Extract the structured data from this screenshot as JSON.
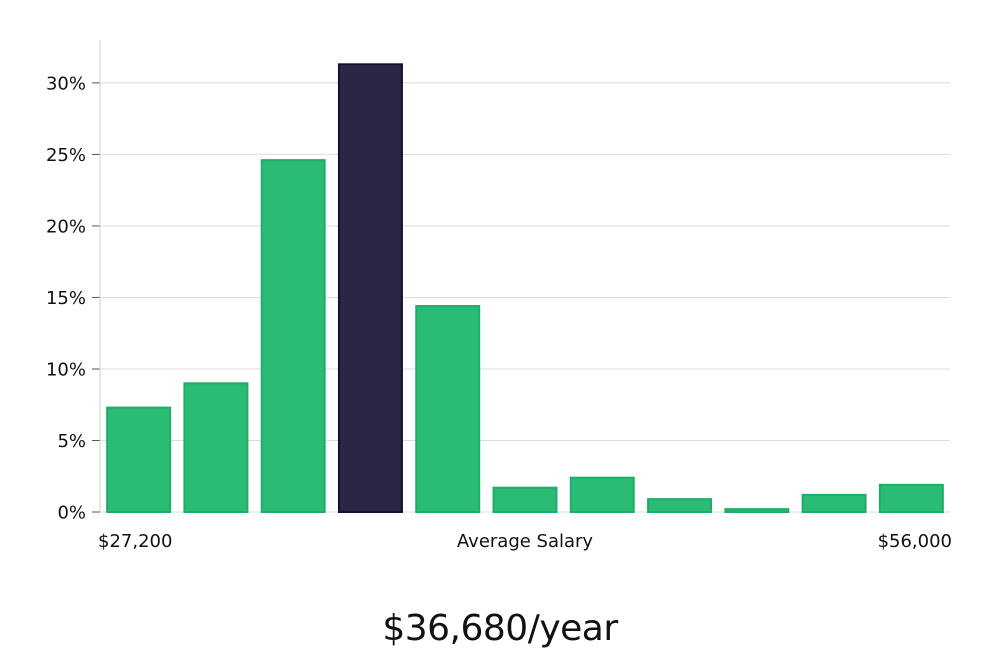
{
  "chart_data": {
    "type": "bar",
    "title": "",
    "xlabel": "Average Salary",
    "ylabel": "",
    "x_range_labels": {
      "min": "$27,200",
      "max": "$56,000"
    },
    "values": [
      7.3,
      9.0,
      24.6,
      31.3,
      14.4,
      1.7,
      2.4,
      0.9,
      0.2,
      1.2,
      1.9
    ],
    "highlight_index": 3,
    "ylim": [
      0,
      33
    ],
    "y_ticks": [
      0,
      5,
      10,
      15,
      20,
      25,
      30
    ],
    "y_tick_labels": [
      "0%",
      "5%",
      "10%",
      "15%",
      "20%",
      "25%",
      "30%"
    ],
    "grid": true,
    "colors": {
      "bar": "#2abb76",
      "bar_border": "#1fae66",
      "highlight": "#2a2646",
      "highlight_border": "#14122e",
      "grid": "#dcdcdc",
      "axis": "#cfcfcf"
    }
  },
  "summary": {
    "average_salary": "$36,680/year"
  }
}
